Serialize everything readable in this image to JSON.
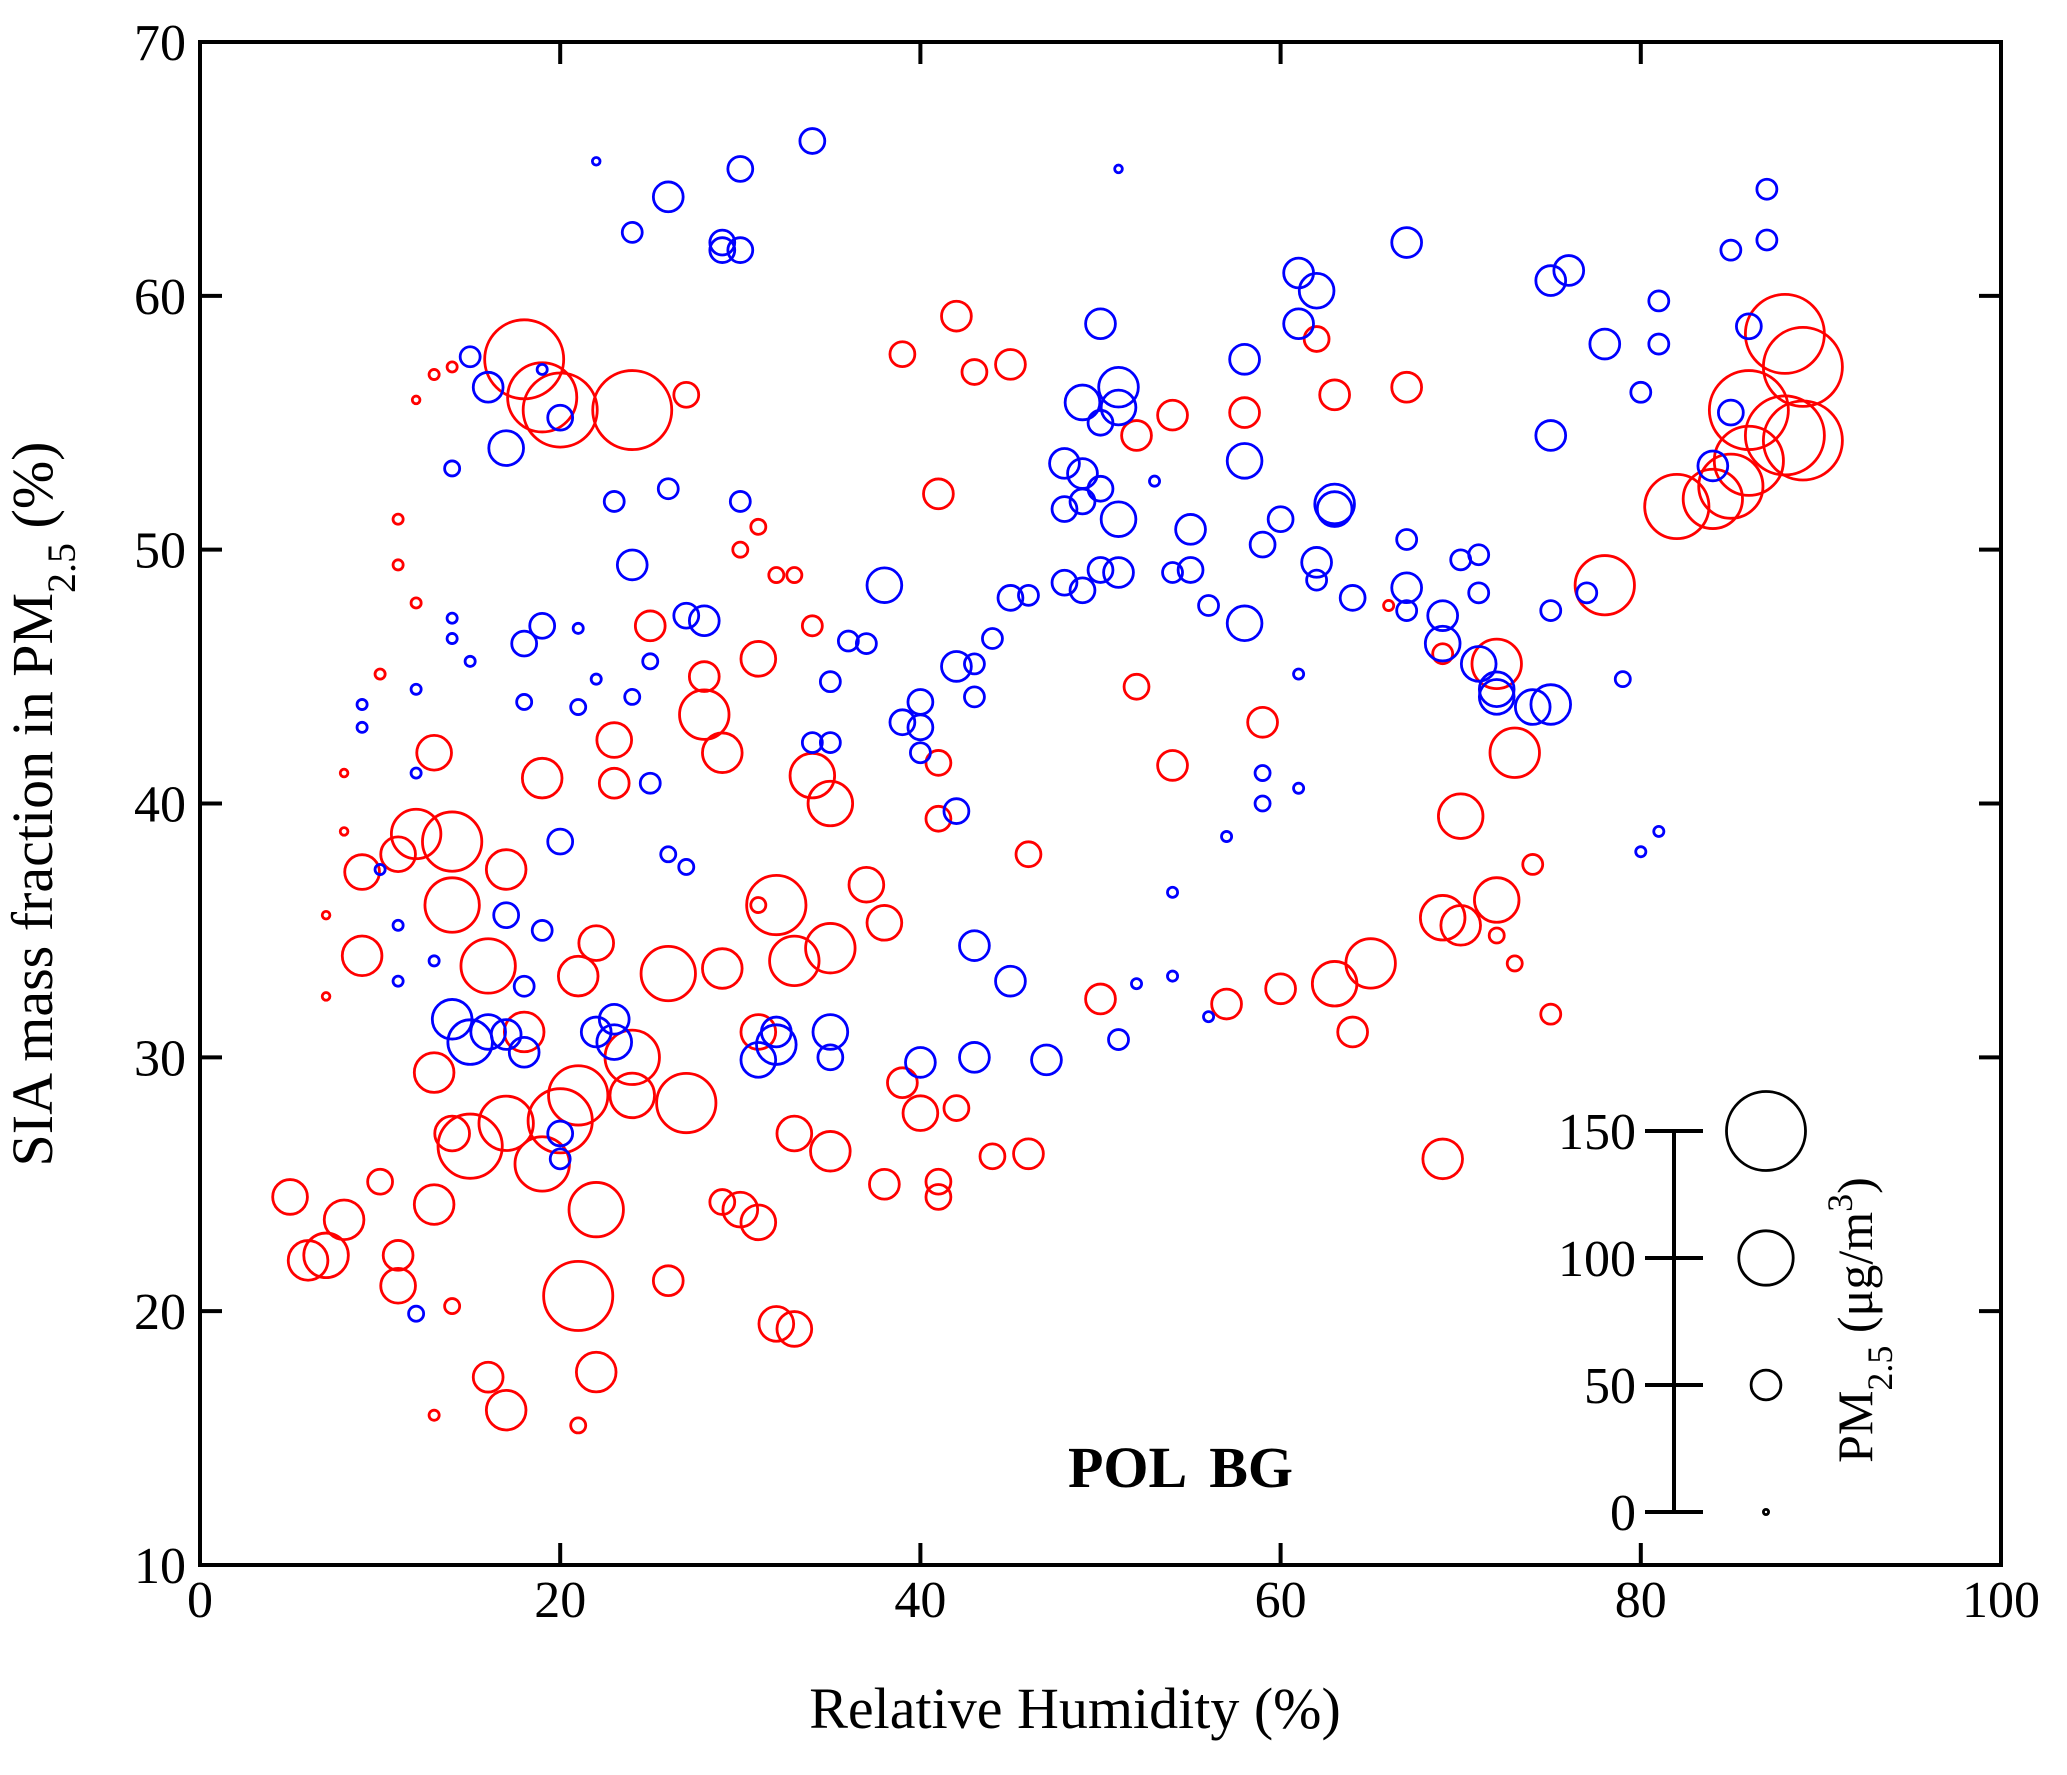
{
  "chart_data": {
    "type": "bubble",
    "xlabel": "Relative Humidity (%)",
    "ylabel": [
      "SIA mass fraction in PM",
      "2.5",
      " (%)"
    ],
    "xlim": [
      0,
      100
    ],
    "xticks": [
      0,
      20,
      40,
      60,
      80,
      100
    ],
    "ylim": [
      10,
      70
    ],
    "yticks": [
      10,
      20,
      30,
      40,
      50,
      60,
      70
    ],
    "size_label": [
      "PM",
      "2.5",
      " (μg/m",
      "3",
      ")"
    ],
    "size_ticks": [
      0,
      50,
      100,
      150
    ],
    "series": [
      {
        "name": "POL",
        "color": "#ff0000",
        "x": [
          18,
          19,
          20,
          24,
          88,
          89,
          88,
          89,
          86,
          86,
          85,
          84,
          82,
          78,
          72,
          73,
          70,
          72,
          69,
          70,
          69,
          65,
          63,
          64,
          60,
          57,
          50,
          46,
          54,
          52,
          59,
          58,
          62,
          63,
          67,
          54,
          52,
          45,
          43,
          42,
          39,
          27,
          41,
          41,
          41,
          44,
          46,
          41,
          41,
          38,
          40,
          42,
          39,
          35,
          33,
          34,
          35,
          32,
          33,
          35,
          37,
          38,
          31,
          28,
          28,
          29,
          27,
          26,
          25,
          23,
          23,
          22,
          21,
          21,
          22,
          21,
          22,
          17,
          16,
          31,
          32,
          33,
          26,
          29,
          5,
          6,
          7,
          8,
          9,
          9,
          11,
          12,
          14,
          13,
          14,
          17,
          16,
          19,
          18,
          15,
          17,
          19,
          20,
          13,
          11,
          11,
          14,
          13,
          10,
          24,
          24,
          29,
          31,
          30,
          14,
          13,
          21,
          11,
          11,
          12,
          10,
          8,
          8,
          7,
          7,
          13,
          14,
          12,
          34,
          30,
          31,
          33,
          32,
          31,
          66,
          75,
          73,
          72,
          74,
          69
        ],
        "values": [
          57.5,
          56,
          55.5,
          55.5,
          58.5,
          57.2,
          54.5,
          54.3,
          55.5,
          53.5,
          52.5,
          52,
          51.7,
          48.6,
          45.5,
          42,
          39.5,
          36.2,
          35.5,
          35.2,
          26,
          33.7,
          32.9,
          31,
          32.7,
          32.1,
          32.3,
          38,
          41.5,
          44.6,
          43.2,
          55.4,
          58.3,
          56.1,
          56.4,
          55.3,
          54.5,
          57.3,
          57,
          59.2,
          57.7,
          56.1,
          52.2,
          41.6,
          39.4,
          26.1,
          26.2,
          25.1,
          24.5,
          25,
          27.8,
          28,
          29,
          26.3,
          27,
          41.1,
          40,
          36,
          33.8,
          34.3,
          36.8,
          35.3,
          45.7,
          45,
          43.5,
          42,
          28.2,
          33.3,
          47,
          40.8,
          42.5,
          34.5,
          33.2,
          28.5,
          24,
          20.6,
          17.6,
          16.1,
          17.4,
          23.5,
          19.5,
          19.3,
          21.2,
          24.3,
          24.5,
          22,
          22.2,
          23.6,
          37.3,
          34,
          38,
          38.8,
          38.5,
          42,
          36,
          37.4,
          33.6,
          41,
          31,
          26.5,
          27.4,
          25.8,
          27.5,
          24.2,
          21,
          22.2,
          27,
          29.4,
          25.1,
          30,
          28.5,
          33.5,
          31,
          24,
          20.2,
          15.9,
          15.5,
          51.2,
          49.4,
          47.9,
          45.1,
          41.2,
          38.9,
          35.6,
          32.4,
          56.9,
          57.2,
          55.9,
          47,
          50,
          50.9,
          49,
          49,
          36,
          47.8,
          31.7,
          33.7,
          34.8,
          37.6,
          45.9
        ],
        "sizes": [
          150,
          130,
          140,
          150,
          150,
          150,
          150,
          150,
          150,
          130,
          120,
          110,
          120,
          110,
          90,
          90,
          80,
          80,
          80,
          70,
          70,
          90,
          80,
          50,
          50,
          50,
          50,
          40,
          50,
          40,
          50,
          50,
          40,
          50,
          50,
          50,
          50,
          50,
          40,
          50,
          40,
          40,
          50,
          40,
          40,
          40,
          50,
          40,
          40,
          50,
          60,
          40,
          50,
          70,
          60,
          80,
          80,
          110,
          90,
          90,
          60,
          60,
          60,
          50,
          90,
          70,
          110,
          100,
          50,
          50,
          60,
          60,
          70,
          110,
          100,
          130,
          70,
          70,
          50,
          60,
          60,
          60,
          50,
          40,
          60,
          70,
          80,
          70,
          60,
          70,
          60,
          90,
          110,
          60,
          100,
          70,
          100,
          70,
          70,
          120,
          100,
          100,
          120,
          70,
          60,
          50,
          60,
          70,
          40,
          100,
          80,
          70,
          60,
          60,
          20,
          10,
          20,
          10,
          10,
          10,
          10,
          5,
          5,
          5,
          5,
          10,
          10,
          5,
          30,
          20,
          20,
          20,
          20,
          20,
          10,
          30,
          20,
          20,
          30,
          30
        ]
      },
      {
        "name": "BG",
        "color": "#0000ff",
        "x": [
          34,
          30,
          26,
          22,
          24,
          29,
          29,
          30,
          15,
          16,
          17,
          20,
          19,
          14,
          23,
          26,
          30,
          24,
          27,
          28,
          19,
          18,
          38,
          36,
          37,
          35,
          35,
          34,
          39,
          40,
          40,
          40,
          42,
          43,
          43,
          42,
          43,
          45,
          43,
          40,
          47,
          32,
          32,
          31,
          35,
          35,
          23,
          23,
          22,
          14,
          15,
          16,
          17,
          18,
          20,
          20,
          48,
          49,
          49,
          50,
          50,
          49,
          51,
          51,
          50,
          51,
          50,
          51,
          49,
          48,
          45,
          46,
          44,
          48,
          53,
          55,
          55,
          54,
          56,
          58,
          58,
          58,
          60,
          59,
          62,
          62,
          63,
          63,
          64,
          61,
          62,
          61,
          67,
          67,
          67,
          67,
          69,
          69,
          70,
          71,
          71,
          71,
          72,
          72,
          74,
          75,
          75,
          75,
          76,
          77,
          75,
          78,
          79,
          80,
          81,
          81,
          85,
          86,
          87,
          87,
          85,
          84,
          80,
          81,
          61,
          61,
          59,
          59,
          57,
          54,
          54,
          56,
          51,
          52,
          51,
          12,
          10,
          11,
          11,
          13,
          12,
          12,
          9,
          9,
          14,
          14,
          15,
          18,
          21,
          22,
          21,
          25,
          24,
          26,
          27,
          25,
          20,
          19,
          17,
          18
        ],
        "values": [
          66.1,
          65,
          63.9,
          65.3,
          62.5,
          62.1,
          61.8,
          61.8,
          57.6,
          56.4,
          54,
          55.2,
          57.1,
          53.2,
          51.9,
          52.4,
          51.9,
          49.4,
          47.4,
          47.2,
          47,
          46.3,
          48.6,
          46.4,
          46.3,
          44.8,
          42.4,
          42.4,
          43.2,
          44,
          43,
          42,
          45.4,
          45.5,
          44.2,
          39.7,
          34.4,
          33,
          30,
          29.8,
          29.9,
          31,
          30.5,
          29.9,
          31,
          30,
          31.5,
          30.6,
          31,
          31.5,
          30.6,
          31,
          30.9,
          30.2,
          27,
          26,
          53.4,
          53,
          51.9,
          52.4,
          55,
          55.8,
          56.4,
          55.6,
          58.9,
          51.2,
          49.2,
          49.1,
          48.4,
          48.7,
          48.1,
          48.2,
          46.5,
          51.6,
          52.7,
          50.8,
          49.2,
          49.1,
          47.8,
          47.1,
          53.5,
          57.5,
          51.2,
          50.2,
          49.5,
          48.8,
          51.8,
          51.6,
          48.1,
          60.9,
          60.2,
          58.9,
          62.1,
          50.4,
          48.5,
          47.6,
          47.4,
          46.3,
          49.6,
          49.8,
          48.3,
          45.5,
          44.5,
          44.2,
          43.8,
          43.9,
          54.5,
          60.6,
          61,
          48.3,
          47.6,
          58.1,
          44.9,
          56.2,
          58.1,
          59.8,
          61.8,
          58.8,
          64.2,
          62.2,
          55.4,
          53.3,
          38.1,
          38.9,
          45.1,
          40.6,
          40,
          41.2,
          38.7,
          36.5,
          33.2,
          31.6,
          30.7,
          32.9,
          65,
          19.9,
          37.4,
          35.2,
          33,
          33.8,
          41.2,
          44.5,
          43.9,
          43,
          47.3,
          46.5,
          45.6,
          44,
          43.8,
          44.9,
          46.9,
          45.6,
          44.2,
          38,
          37.5,
          40.8,
          38.5,
          35,
          35.6,
          32.8
        ],
        "sizes": [
          40,
          40,
          50,
          5,
          30,
          40,
          40,
          40,
          30,
          50,
          60,
          40,
          10,
          20,
          30,
          30,
          30,
          50,
          40,
          50,
          40,
          40,
          60,
          30,
          30,
          30,
          30,
          30,
          40,
          40,
          40,
          30,
          50,
          30,
          30,
          40,
          50,
          50,
          50,
          50,
          50,
          50,
          70,
          60,
          60,
          40,
          50,
          60,
          50,
          70,
          80,
          60,
          50,
          50,
          40,
          30,
          50,
          50,
          40,
          40,
          40,
          60,
          70,
          60,
          50,
          60,
          40,
          50,
          40,
          40,
          40,
          30,
          30,
          40,
          10,
          50,
          40,
          30,
          30,
          60,
          60,
          50,
          40,
          40,
          50,
          30,
          70,
          60,
          40,
          50,
          60,
          50,
          50,
          30,
          50,
          30,
          50,
          60,
          30,
          30,
          30,
          60,
          60,
          60,
          60,
          70,
          50,
          50,
          50,
          30,
          30,
          50,
          20,
          30,
          30,
          30,
          30,
          40,
          30,
          30,
          40,
          50,
          10,
          10,
          10,
          10,
          20,
          20,
          10,
          10,
          10,
          10,
          30,
          10,
          5,
          20,
          10,
          10,
          10,
          10,
          10,
          10,
          10,
          10,
          10,
          10,
          10,
          20,
          20,
          10,
          10,
          20,
          20,
          20,
          20,
          30,
          40,
          30,
          40,
          30
        ]
      }
    ]
  }
}
